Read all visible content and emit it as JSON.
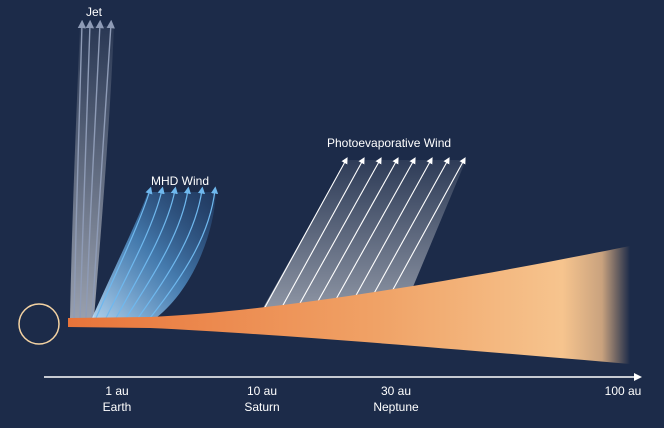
{
  "labels": {
    "jet": "Jet",
    "mhd_wind": "MHD Wind",
    "photoevaporative_wind": "Photoevaporative Wind"
  },
  "axis": {
    "ticks": [
      {
        "value": "1 au",
        "name": "Earth"
      },
      {
        "value": "10 au",
        "name": "Saturn"
      },
      {
        "value": "30 au",
        "name": "Neptune"
      },
      {
        "value": "100 au",
        "name": ""
      }
    ]
  },
  "colors": {
    "background": "#1c2b49",
    "disk_inner": "#e8743a",
    "disk_outer": "#f6c48e",
    "mhd_arrow": "#6fb8ee",
    "jet_arrow": "#c8d2e4",
    "photo_arrow": "#ffffff",
    "star_outline": "#f4d3a3"
  }
}
